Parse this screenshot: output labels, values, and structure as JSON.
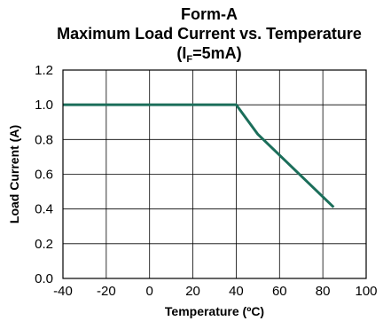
{
  "chart_data": {
    "type": "line",
    "title": "Form-A",
    "subtitle": "Maximum Load Current vs. Temperature",
    "condition": {
      "open": "(I",
      "subscript": "F",
      "rest": "=5mA)"
    },
    "xlabel": "Temperature (ºC)",
    "ylabel": "Load Current (A)",
    "xlim": [
      -40,
      100
    ],
    "ylim": [
      0,
      1.2
    ],
    "xticks": [
      -40,
      -20,
      0,
      20,
      40,
      60,
      80,
      100
    ],
    "xtick_labels": [
      "-40",
      "-20",
      "0",
      "20",
      "40",
      "60",
      "80",
      "100"
    ],
    "yticks": [
      0,
      0.2,
      0.4,
      0.6,
      0.8,
      1.0,
      1.2
    ],
    "ytick_labels": [
      "0.0",
      "0.2",
      "0.4",
      "0.6",
      "0.8",
      "1.0",
      "1.2"
    ],
    "grid": true,
    "series": [
      {
        "color": "#1b6e5a",
        "x": [
          -40,
          40,
          50,
          85
        ],
        "y": [
          1.0,
          1.0,
          0.83,
          0.41
        ]
      }
    ]
  }
}
